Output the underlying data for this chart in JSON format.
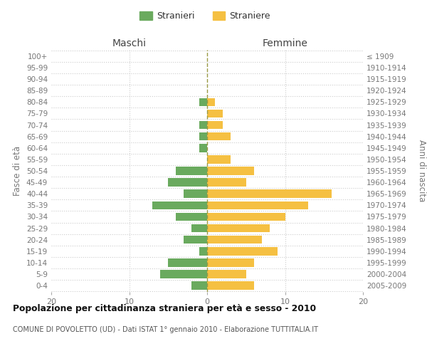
{
  "age_groups": [
    "0-4",
    "5-9",
    "10-14",
    "15-19",
    "20-24",
    "25-29",
    "30-34",
    "35-39",
    "40-44",
    "45-49",
    "50-54",
    "55-59",
    "60-64",
    "65-69",
    "70-74",
    "75-79",
    "80-84",
    "85-89",
    "90-94",
    "95-99",
    "100+"
  ],
  "birth_years": [
    "2005-2009",
    "2000-2004",
    "1995-1999",
    "1990-1994",
    "1985-1989",
    "1980-1984",
    "1975-1979",
    "1970-1974",
    "1965-1969",
    "1960-1964",
    "1955-1959",
    "1950-1954",
    "1945-1949",
    "1940-1944",
    "1935-1939",
    "1930-1934",
    "1925-1929",
    "1920-1924",
    "1915-1919",
    "1910-1914",
    "≤ 1909"
  ],
  "maschi": [
    2,
    6,
    5,
    1,
    3,
    2,
    4,
    7,
    3,
    5,
    4,
    0,
    1,
    1,
    1,
    0,
    1,
    0,
    0,
    0,
    0
  ],
  "femmine": [
    6,
    5,
    6,
    9,
    7,
    8,
    10,
    13,
    16,
    5,
    6,
    3,
    0,
    3,
    2,
    2,
    1,
    0,
    0,
    0,
    0
  ],
  "maschi_color": "#6aaa5e",
  "femmine_color": "#f5c042",
  "background_color": "#ffffff",
  "grid_color": "#cccccc",
  "title": "Popolazione per cittadinanza straniera per età e sesso - 2010",
  "subtitle": "COMUNE DI POVOLETTO (UD) - Dati ISTAT 1° gennaio 2010 - Elaborazione TUTTITALIA.IT",
  "xlabel_left": "Maschi",
  "xlabel_right": "Femmine",
  "ylabel_left": "Fasce di età",
  "ylabel_right": "Anni di nascita",
  "legend_stranieri": "Stranieri",
  "legend_straniere": "Straniere",
  "xlim": 20,
  "tick_color": "#aaaaaa",
  "label_color": "#777777"
}
